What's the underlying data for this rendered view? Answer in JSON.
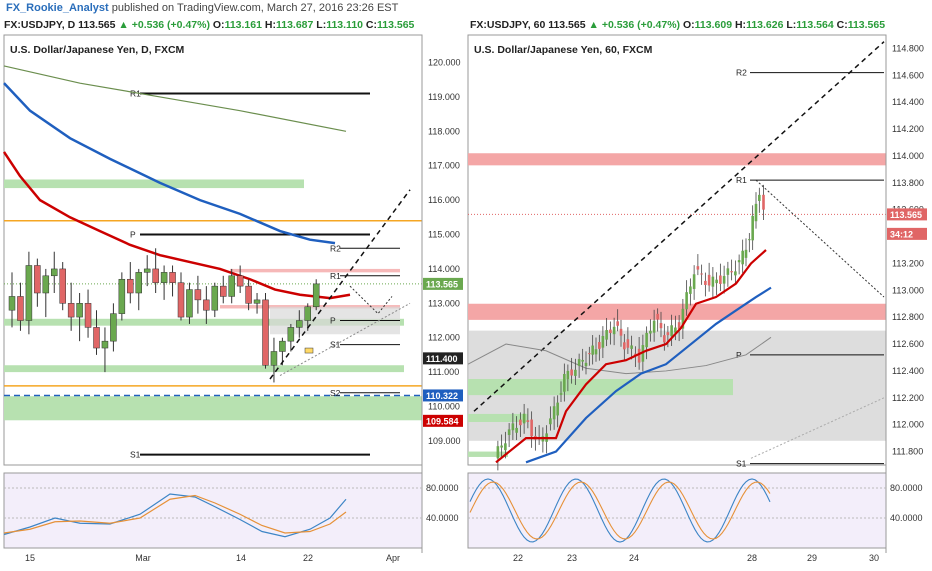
{
  "header": {
    "author": "FX_Rookie_Analyst",
    "published": "published on TradingView.com, March 27, 2016 23:26 EST"
  },
  "left": {
    "ohlc": {
      "symbol": "FX:USDJPY, D",
      "close": "113.565",
      "change": "▲ +0.536 (+0.47%)",
      "open_label": "O:",
      "open": "113.161",
      "high_label": "H:",
      "high": "113.687",
      "low_label": "L:",
      "low": "113.110",
      "close_label": "C:",
      "close2": "113.565"
    },
    "title": "U.S. Dollar/Japanese Yen, D, FXCM"
  },
  "right": {
    "ohlc": {
      "symbol": "FX:USDJPY, 60",
      "close": "113.565",
      "change": "▲ +0.536 (+0.47%)",
      "open_label": "O:",
      "open": "113.609",
      "high_label": "H:",
      "high": "113.626",
      "low_label": "L:",
      "low": "113.564",
      "close_label": "C:",
      "close2": "113.565"
    },
    "title": "U.S. Dollar/Japanese Yen, 60, FXCM"
  },
  "colors": {
    "bull": "#6aa84f",
    "bear": "#e06666",
    "ma_red": "#cc0000",
    "ma_blue": "#1f5fbf",
    "ma_green": "#6b8e4e",
    "support_zone": "#b7e1b0",
    "resist_zone": "#f4a6a6",
    "grey_zone": "#cfcfcf",
    "orange": "#f5a623",
    "stoch_bg": "#f3eefa"
  },
  "chart_data": [
    {
      "type": "candlestick",
      "title": "U.S. Dollar/Japanese Yen, D, FXCM",
      "ylim": [
        108.3,
        120.8
      ],
      "y_ticks": [
        109,
        110,
        111,
        112,
        113,
        114,
        115,
        116,
        117,
        118,
        119,
        120
      ],
      "x_ticks": [
        "15",
        "Mar",
        "14",
        "22",
        "Apr"
      ],
      "x_tick_index": [
        0,
        16,
        28,
        37,
        48
      ],
      "candles": [
        {
          "o": 112.8,
          "h": 113.9,
          "l": 112.3,
          "c": 113.2
        },
        {
          "o": 113.2,
          "h": 113.6,
          "l": 112.2,
          "c": 112.5
        },
        {
          "o": 112.5,
          "h": 114.5,
          "l": 112.1,
          "c": 114.1
        },
        {
          "o": 114.1,
          "h": 114.3,
          "l": 112.9,
          "c": 113.3
        },
        {
          "o": 113.3,
          "h": 114.0,
          "l": 112.6,
          "c": 113.8
        },
        {
          "o": 113.8,
          "h": 114.5,
          "l": 113.3,
          "c": 114.0
        },
        {
          "o": 114.0,
          "h": 114.2,
          "l": 112.8,
          "c": 113.0
        },
        {
          "o": 113.0,
          "h": 113.6,
          "l": 112.2,
          "c": 112.6
        },
        {
          "o": 112.6,
          "h": 113.3,
          "l": 111.9,
          "c": 113.0
        },
        {
          "o": 113.0,
          "h": 113.4,
          "l": 112.0,
          "c": 112.3
        },
        {
          "o": 112.3,
          "h": 112.8,
          "l": 111.5,
          "c": 111.7
        },
        {
          "o": 111.7,
          "h": 112.3,
          "l": 111.0,
          "c": 111.9
        },
        {
          "o": 111.9,
          "h": 113.0,
          "l": 111.6,
          "c": 112.7
        },
        {
          "o": 112.7,
          "h": 113.9,
          "l": 112.5,
          "c": 113.7
        },
        {
          "o": 113.7,
          "h": 114.2,
          "l": 113.0,
          "c": 113.3
        },
        {
          "o": 113.3,
          "h": 114.0,
          "l": 112.8,
          "c": 113.9
        },
        {
          "o": 113.9,
          "h": 114.4,
          "l": 113.5,
          "c": 114.0
        },
        {
          "o": 114.0,
          "h": 114.6,
          "l": 113.3,
          "c": 113.6
        },
        {
          "o": 113.6,
          "h": 114.1,
          "l": 113.1,
          "c": 113.9
        },
        {
          "o": 113.9,
          "h": 114.1,
          "l": 113.2,
          "c": 113.6
        },
        {
          "o": 113.6,
          "h": 113.9,
          "l": 112.5,
          "c": 112.6
        },
        {
          "o": 112.6,
          "h": 113.6,
          "l": 112.4,
          "c": 113.4
        },
        {
          "o": 113.4,
          "h": 113.8,
          "l": 112.7,
          "c": 113.1
        },
        {
          "o": 113.1,
          "h": 113.5,
          "l": 112.4,
          "c": 112.8
        },
        {
          "o": 112.8,
          "h": 113.6,
          "l": 112.6,
          "c": 113.5
        },
        {
          "o": 113.5,
          "h": 113.8,
          "l": 113.0,
          "c": 113.2
        },
        {
          "o": 113.2,
          "h": 114.0,
          "l": 113.0,
          "c": 113.8
        },
        {
          "o": 113.8,
          "h": 114.1,
          "l": 113.3,
          "c": 113.5
        },
        {
          "o": 113.5,
          "h": 113.7,
          "l": 112.8,
          "c": 113.0
        },
        {
          "o": 113.0,
          "h": 113.3,
          "l": 112.7,
          "c": 113.1
        },
        {
          "o": 113.1,
          "h": 113.3,
          "l": 111.1,
          "c": 111.2
        },
        {
          "o": 111.2,
          "h": 112.0,
          "l": 110.7,
          "c": 111.6
        },
        {
          "o": 111.6,
          "h": 112.0,
          "l": 111.2,
          "c": 111.9
        },
        {
          "o": 111.9,
          "h": 112.4,
          "l": 111.6,
          "c": 112.3
        },
        {
          "o": 112.3,
          "h": 112.8,
          "l": 112.0,
          "c": 112.5
        },
        {
          "o": 112.5,
          "h": 113.0,
          "l": 112.2,
          "c": 112.9
        },
        {
          "o": 112.9,
          "h": 113.7,
          "l": 112.8,
          "c": 113.565
        }
      ],
      "price_labels": [
        {
          "value": 113.565,
          "text": "113.565",
          "color": "#6aa84f"
        },
        {
          "value": 111.4,
          "text": "111.400",
          "color": "#222222"
        },
        {
          "value": 110.322,
          "text": "110.322",
          "color": "#1f5fbf"
        },
        {
          "value": 109.584,
          "text": "109.584",
          "color": "#cc0000"
        }
      ],
      "pivots": [
        {
          "name": "R1",
          "value": 119.1
        },
        {
          "name": "P",
          "value": 115.0
        },
        {
          "name": "R2",
          "value": 114.6
        },
        {
          "name": "R1",
          "value": 113.8
        },
        {
          "name": "P",
          "value": 112.5
        },
        {
          "name": "S1",
          "value": 111.8
        },
        {
          "name": "S2",
          "value": 110.4
        },
        {
          "name": "S1",
          "value": 108.6
        }
      ],
      "stoch_ticks": [
        80,
        40
      ],
      "stoch_tick_labels": [
        "80.0000",
        "40.0000"
      ]
    },
    {
      "type": "candlestick",
      "title": "U.S. Dollar/Japanese Yen, 60, FXCM",
      "ylim": [
        111.7,
        114.9
      ],
      "y_ticks": [
        111.8,
        112.0,
        112.2,
        112.4,
        112.6,
        112.8,
        113.0,
        113.2,
        113.4,
        113.6,
        113.8,
        114.0,
        114.2,
        114.4,
        114.6,
        114.8
      ],
      "x_ticks": [
        "22",
        "23",
        "24",
        "28",
        "29",
        "30"
      ],
      "price_labels": [
        {
          "value": 113.565,
          "text": "113.565",
          "color": "#e06666"
        },
        {
          "value": 113.42,
          "text": "34:12",
          "color": "#e06666"
        }
      ],
      "pivots": [
        {
          "name": "R2",
          "value": 114.62
        },
        {
          "name": "R1",
          "value": 113.82
        },
        {
          "name": "P",
          "value": 112.52
        },
        {
          "name": "S1",
          "value": 111.71
        }
      ],
      "stoch_ticks": [
        80,
        40
      ],
      "stoch_tick_labels": [
        "80.0000",
        "40.0000"
      ]
    }
  ]
}
